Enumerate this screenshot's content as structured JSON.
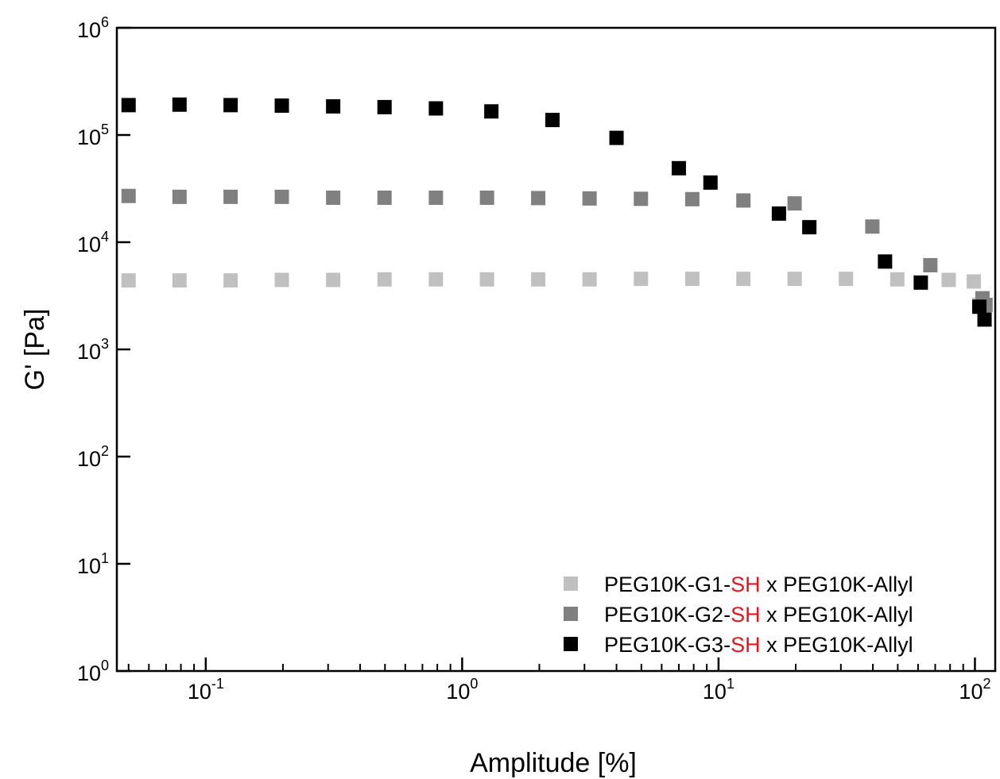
{
  "chart_data": {
    "type": "scatter",
    "title": "",
    "xlabel": "Amplitude [%]",
    "ylabel": "G' [Pa]",
    "x_scale": "log",
    "y_scale": "log",
    "xlim": [
      0.045,
      120
    ],
    "ylim": [
      1,
      1000000
    ],
    "x_ticks": [
      {
        "base": "10",
        "exp": "-1",
        "value": 0.1
      },
      {
        "base": "10",
        "exp": "0",
        "value": 1
      },
      {
        "base": "10",
        "exp": "1",
        "value": 10
      },
      {
        "base": "10",
        "exp": "2",
        "value": 100
      }
    ],
    "y_ticks": [
      {
        "base": "10",
        "exp": "0",
        "value": 1
      },
      {
        "base": "10",
        "exp": "1",
        "value": 10
      },
      {
        "base": "10",
        "exp": "2",
        "value": 100
      },
      {
        "base": "10",
        "exp": "3",
        "value": 1000
      },
      {
        "base": "10",
        "exp": "4",
        "value": 10000
      },
      {
        "base": "10",
        "exp": "5",
        "value": 100000
      },
      {
        "base": "10",
        "exp": "6",
        "value": 1000000
      }
    ],
    "grid": false,
    "legend_position": "bottom-right",
    "series": [
      {
        "name_parts": [
          "PEG10K-G1-",
          "SH",
          " x PEG10K-Allyl"
        ],
        "color": "#c0c0c0",
        "marker": "square",
        "x": [
          0.05,
          0.079,
          0.125,
          0.198,
          0.314,
          0.498,
          0.79,
          1.25,
          1.98,
          3.14,
          4.98,
          7.9,
          12.5,
          19.8,
          31.4,
          49.8,
          79,
          99,
          104
        ],
        "y": [
          4400,
          4400,
          4400,
          4450,
          4450,
          4500,
          4500,
          4500,
          4500,
          4500,
          4550,
          4550,
          4550,
          4550,
          4550,
          4500,
          4450,
          4300,
          2600
        ]
      },
      {
        "name_parts": [
          "PEG10K-G2-",
          "SH",
          " x PEG10K-Allyl"
        ],
        "color": "#808080",
        "marker": "square",
        "x": [
          0.05,
          0.079,
          0.125,
          0.198,
          0.314,
          0.498,
          0.79,
          1.25,
          1.98,
          3.14,
          4.98,
          7.9,
          12.5,
          19.8,
          39.8,
          67,
          107,
          110
        ],
        "y": [
          27000,
          26500,
          26500,
          26500,
          26000,
          26000,
          26000,
          26000,
          25800,
          25600,
          25400,
          25200,
          24500,
          23000,
          14000,
          6100,
          3000,
          2600
        ]
      },
      {
        "name_parts": [
          "PEG10K-G3-",
          "SH",
          " x PEG10K-Allyl"
        ],
        "color": "#000000",
        "marker": "square",
        "x": [
          0.05,
          0.079,
          0.125,
          0.198,
          0.314,
          0.498,
          0.79,
          1.3,
          2.25,
          4.0,
          7.0,
          9.3,
          17.2,
          22.6,
          44.6,
          61.5,
          104,
          109
        ],
        "y": [
          190000,
          192000,
          190000,
          188000,
          185000,
          182000,
          177000,
          166000,
          138000,
          94000,
          49000,
          36000,
          18500,
          13800,
          6600,
          4200,
          2500,
          1900
        ]
      }
    ]
  },
  "colors": {
    "sh_highlight": "#e8141b",
    "axis": "#000000"
  }
}
